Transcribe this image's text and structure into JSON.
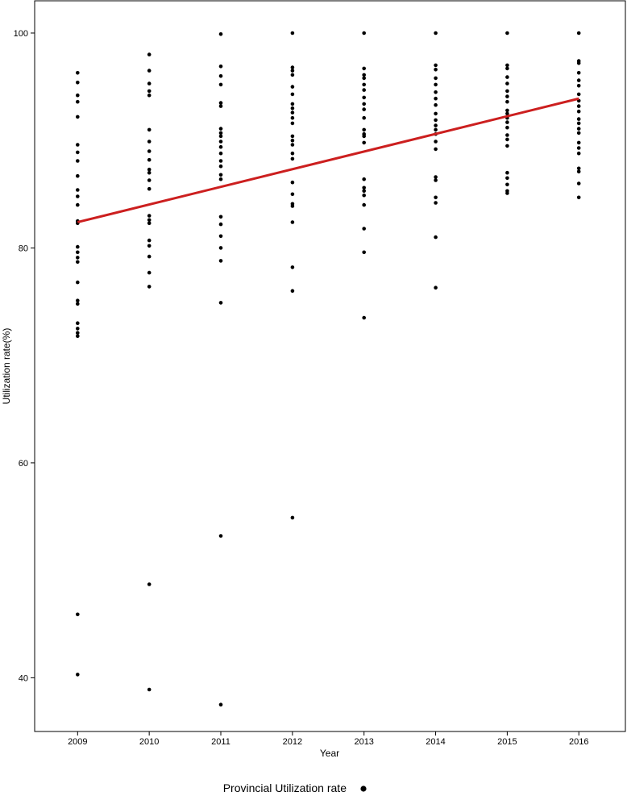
{
  "chart_data": {
    "type": "scatter",
    "title": "",
    "xlabel": "Year",
    "ylabel": "Utilization rate(%)",
    "x_ticks": [
      "2009",
      "2010",
      "2011",
      "2012",
      "2013",
      "2014",
      "2015",
      "2016"
    ],
    "y_ticks": [
      40,
      60,
      80,
      100
    ],
    "xlim": [
      2008.4,
      2016.65
    ],
    "ylim": [
      35,
      103
    ],
    "grid": false,
    "legend_position": "bottom",
    "point_color": "#000000",
    "line_color": "#cc1f1f",
    "series": [
      {
        "name": "Provincial Utilization rate",
        "kind": "points",
        "points": [
          [
            2009,
            96.3
          ],
          [
            2009,
            95.4
          ],
          [
            2009,
            94.2
          ],
          [
            2009,
            93.6
          ],
          [
            2009,
            92.2
          ],
          [
            2009,
            89.6
          ],
          [
            2009,
            88.9
          ],
          [
            2009,
            88.1
          ],
          [
            2009,
            86.7
          ],
          [
            2009,
            85.4
          ],
          [
            2009,
            84.8
          ],
          [
            2009,
            84.0
          ],
          [
            2009,
            82.5
          ],
          [
            2009,
            82.3
          ],
          [
            2009,
            80.1
          ],
          [
            2009,
            79.6
          ],
          [
            2009,
            79.1
          ],
          [
            2009,
            78.7
          ],
          [
            2009,
            76.8
          ],
          [
            2009,
            75.1
          ],
          [
            2009,
            74.8
          ],
          [
            2009,
            73.0
          ],
          [
            2009,
            72.5
          ],
          [
            2009,
            72.1
          ],
          [
            2009,
            71.8
          ],
          [
            2009,
            45.9
          ],
          [
            2009,
            40.3
          ],
          [
            2010,
            98.0
          ],
          [
            2010,
            96.5
          ],
          [
            2010,
            95.3
          ],
          [
            2010,
            94.6
          ],
          [
            2010,
            94.2
          ],
          [
            2010,
            91.0
          ],
          [
            2010,
            89.9
          ],
          [
            2010,
            89.0
          ],
          [
            2010,
            88.2
          ],
          [
            2010,
            87.3
          ],
          [
            2010,
            87.0
          ],
          [
            2010,
            86.3
          ],
          [
            2010,
            85.5
          ],
          [
            2010,
            83.0
          ],
          [
            2010,
            82.6
          ],
          [
            2010,
            82.3
          ],
          [
            2010,
            80.7
          ],
          [
            2010,
            80.2
          ],
          [
            2010,
            79.2
          ],
          [
            2010,
            77.7
          ],
          [
            2010,
            76.4
          ],
          [
            2010,
            48.7
          ],
          [
            2010,
            38.9
          ],
          [
            2011,
            99.9
          ],
          [
            2011,
            96.9
          ],
          [
            2011,
            96.0
          ],
          [
            2011,
            95.2
          ],
          [
            2011,
            93.5
          ],
          [
            2011,
            93.2
          ],
          [
            2011,
            91.1
          ],
          [
            2011,
            90.7
          ],
          [
            2011,
            90.4
          ],
          [
            2011,
            89.9
          ],
          [
            2011,
            89.4
          ],
          [
            2011,
            88.8
          ],
          [
            2011,
            88.1
          ],
          [
            2011,
            87.6
          ],
          [
            2011,
            86.8
          ],
          [
            2011,
            86.4
          ],
          [
            2011,
            82.9
          ],
          [
            2011,
            82.2
          ],
          [
            2011,
            81.1
          ],
          [
            2011,
            80.0
          ],
          [
            2011,
            78.8
          ],
          [
            2011,
            74.9
          ],
          [
            2011,
            53.2
          ],
          [
            2011,
            37.5
          ],
          [
            2012,
            100.0
          ],
          [
            2012,
            96.8
          ],
          [
            2012,
            96.5
          ],
          [
            2012,
            96.1
          ],
          [
            2012,
            95.0
          ],
          [
            2012,
            94.3
          ],
          [
            2012,
            93.4
          ],
          [
            2012,
            93.0
          ],
          [
            2012,
            92.6
          ],
          [
            2012,
            92.1
          ],
          [
            2012,
            91.6
          ],
          [
            2012,
            90.4
          ],
          [
            2012,
            90.0
          ],
          [
            2012,
            89.6
          ],
          [
            2012,
            88.8
          ],
          [
            2012,
            88.3
          ],
          [
            2012,
            86.1
          ],
          [
            2012,
            85.0
          ],
          [
            2012,
            84.1
          ],
          [
            2012,
            83.9
          ],
          [
            2012,
            82.4
          ],
          [
            2012,
            78.2
          ],
          [
            2012,
            76.0
          ],
          [
            2012,
            54.9
          ],
          [
            2013,
            100.0
          ],
          [
            2013,
            96.7
          ],
          [
            2013,
            96.1
          ],
          [
            2013,
            95.8
          ],
          [
            2013,
            95.2
          ],
          [
            2013,
            94.7
          ],
          [
            2013,
            94.0
          ],
          [
            2013,
            93.4
          ],
          [
            2013,
            92.9
          ],
          [
            2013,
            92.1
          ],
          [
            2013,
            91.0
          ],
          [
            2013,
            90.6
          ],
          [
            2013,
            90.4
          ],
          [
            2013,
            89.8
          ],
          [
            2013,
            86.4
          ],
          [
            2013,
            85.6
          ],
          [
            2013,
            85.3
          ],
          [
            2013,
            84.9
          ],
          [
            2013,
            84.0
          ],
          [
            2013,
            81.8
          ],
          [
            2013,
            79.6
          ],
          [
            2013,
            73.5
          ],
          [
            2014,
            100.0
          ],
          [
            2014,
            97.0
          ],
          [
            2014,
            96.6
          ],
          [
            2014,
            95.8
          ],
          [
            2014,
            95.2
          ],
          [
            2014,
            94.5
          ],
          [
            2014,
            93.9
          ],
          [
            2014,
            93.3
          ],
          [
            2014,
            92.5
          ],
          [
            2014,
            91.9
          ],
          [
            2014,
            91.4
          ],
          [
            2014,
            91.0
          ],
          [
            2014,
            90.6
          ],
          [
            2014,
            89.9
          ],
          [
            2014,
            89.2
          ],
          [
            2014,
            86.6
          ],
          [
            2014,
            86.3
          ],
          [
            2014,
            84.7
          ],
          [
            2014,
            84.2
          ],
          [
            2014,
            81.0
          ],
          [
            2014,
            76.3
          ],
          [
            2015,
            100.0
          ],
          [
            2015,
            97.0
          ],
          [
            2015,
            96.7
          ],
          [
            2015,
            95.9
          ],
          [
            2015,
            95.3
          ],
          [
            2015,
            94.6
          ],
          [
            2015,
            94.1
          ],
          [
            2015,
            93.6
          ],
          [
            2015,
            92.8
          ],
          [
            2015,
            92.5
          ],
          [
            2015,
            92.1
          ],
          [
            2015,
            91.7
          ],
          [
            2015,
            91.2
          ],
          [
            2015,
            90.5
          ],
          [
            2015,
            90.1
          ],
          [
            2015,
            89.5
          ],
          [
            2015,
            87.0
          ],
          [
            2015,
            86.5
          ],
          [
            2015,
            85.9
          ],
          [
            2015,
            85.3
          ],
          [
            2015,
            85.1
          ],
          [
            2016,
            100.0
          ],
          [
            2016,
            97.4
          ],
          [
            2016,
            97.2
          ],
          [
            2016,
            96.3
          ],
          [
            2016,
            95.6
          ],
          [
            2016,
            95.1
          ],
          [
            2016,
            94.3
          ],
          [
            2016,
            93.7
          ],
          [
            2016,
            93.2
          ],
          [
            2016,
            92.7
          ],
          [
            2016,
            92.0
          ],
          [
            2016,
            91.6
          ],
          [
            2016,
            91.1
          ],
          [
            2016,
            90.7
          ],
          [
            2016,
            89.8
          ],
          [
            2016,
            89.3
          ],
          [
            2016,
            88.8
          ],
          [
            2016,
            87.4
          ],
          [
            2016,
            87.1
          ],
          [
            2016,
            86.0
          ],
          [
            2016,
            84.7
          ]
        ]
      },
      {
        "kind": "trend_line",
        "x": [
          2009,
          2016
        ],
        "y": [
          82.4,
          93.9
        ]
      }
    ]
  }
}
